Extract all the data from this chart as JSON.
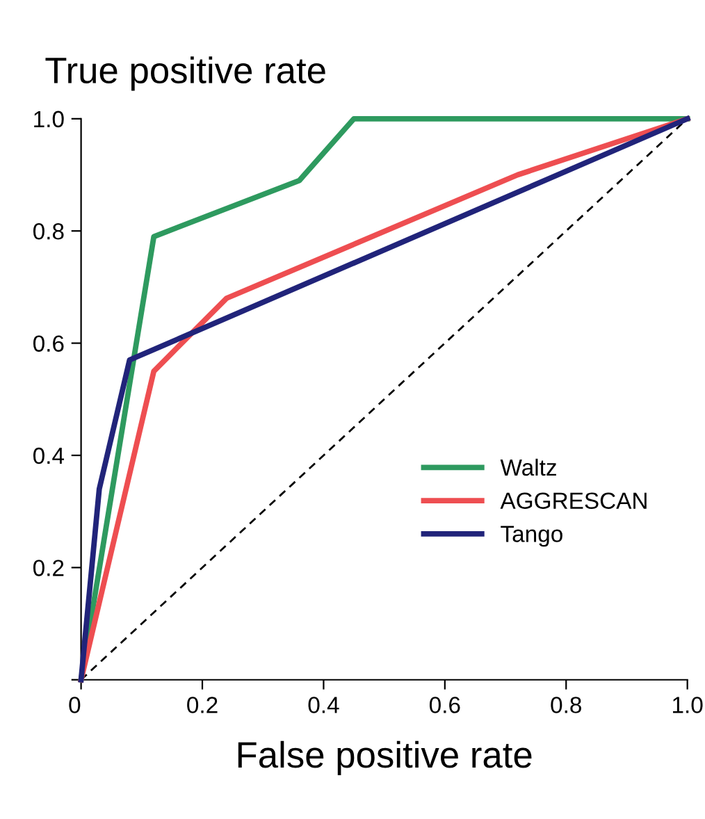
{
  "chart_data": {
    "type": "line",
    "ylabel": "True positive rate",
    "xlabel": "False positive rate",
    "xlim": [
      0,
      1
    ],
    "ylim": [
      0,
      1
    ],
    "xticks": [
      {
        "value": 0,
        "label": "0"
      },
      0.2,
      0.4,
      0.6,
      0.8,
      {
        "value": 1,
        "label": "1.0"
      }
    ],
    "yticks": [
      {
        "value": 0,
        "label": null
      },
      0.2,
      0.4,
      0.6,
      0.8,
      {
        "value": 1,
        "label": "1.0"
      }
    ],
    "series": [
      {
        "name": "Waltz",
        "color": "#2e9a5f",
        "x": [
          0,
          0.12,
          0.36,
          0.45,
          1.0
        ],
        "values": [
          0,
          0.79,
          0.89,
          1.0,
          1.0
        ]
      },
      {
        "name": "AGGRESCAN",
        "color": "#ee4e51",
        "x": [
          0,
          0.12,
          0.24,
          0.72,
          1.0
        ],
        "values": [
          0,
          0.55,
          0.68,
          0.9,
          1.0
        ]
      },
      {
        "name": "Tango",
        "color": "#21247a",
        "x": [
          0,
          0.03,
          0.08,
          1.0
        ],
        "values": [
          0,
          0.34,
          0.57,
          1.0
        ]
      },
      {
        "color": "#000000",
        "x": [
          0,
          1.0
        ],
        "values": [
          0,
          1.0
        ],
        "line_style": "dashed"
      }
    ],
    "legend": "bottom right",
    "grid": false
  }
}
